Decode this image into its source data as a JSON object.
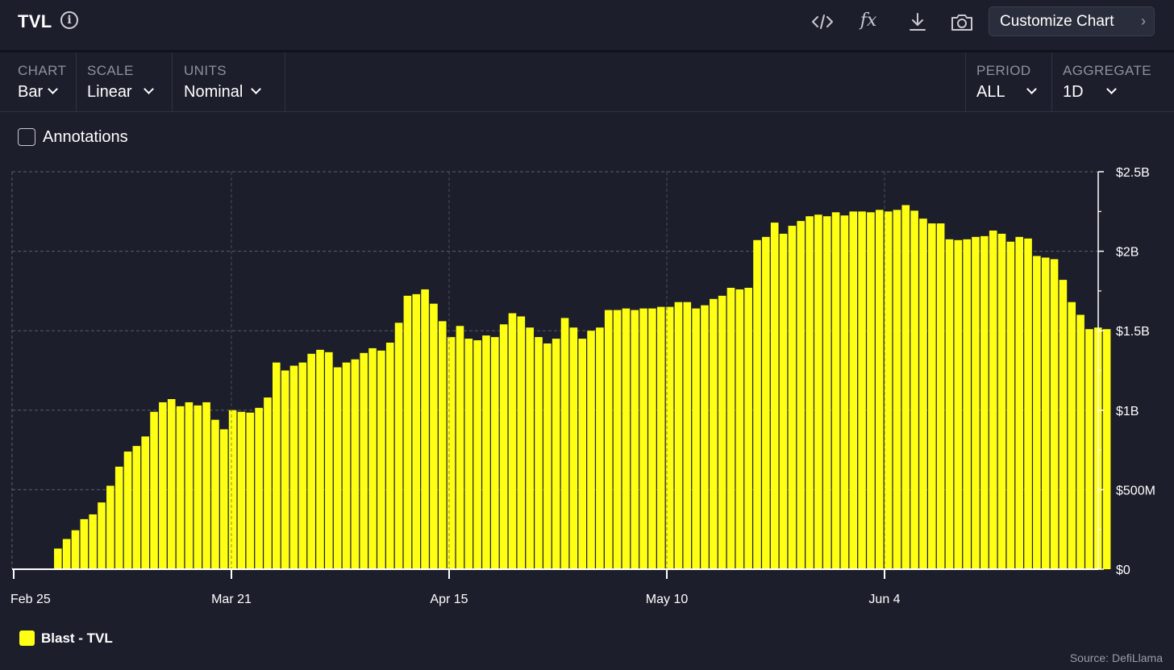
{
  "header": {
    "title": "TVL",
    "info_icon": "info-icon",
    "tools": [
      "code-embed-icon",
      "formula-icon",
      "download-icon",
      "camera-icon"
    ],
    "formula_label": "fx",
    "customize_label": "Customize Chart"
  },
  "controls": {
    "chart": {
      "label": "CHART",
      "value": "Bar"
    },
    "scale": {
      "label": "SCALE",
      "value": "Linear"
    },
    "units": {
      "label": "UNITS",
      "value": "Nominal"
    },
    "period": {
      "label": "PERIOD",
      "value": "ALL"
    },
    "aggregate": {
      "label": "AGGREGATE",
      "value": "1D"
    }
  },
  "annotations": {
    "label": "Annotations",
    "checked": false
  },
  "legend": {
    "label": "Blast - TVL",
    "color": "#ffff14"
  },
  "source": "Source: DefiLlama",
  "colors": {
    "background": "#1c1e2b",
    "bar": "#ffff14",
    "grid": "#5a5d6b"
  },
  "chart_data": {
    "type": "bar",
    "series": [
      {
        "name": "Blast - TVL"
      }
    ],
    "x_ticks": [
      "Feb 25",
      "Mar 21",
      "Apr 15",
      "May 10",
      "Jun 4"
    ],
    "y_ticks": [
      "$0",
      "$500M",
      "$1B",
      "$1.5B",
      "$2B",
      "$2.5B"
    ],
    "ylim": [
      0,
      2500
    ],
    "y_unit": "$M",
    "first_date": "Feb 29",
    "grid": true,
    "values": [
      130,
      190,
      245,
      315,
      345,
      420,
      525,
      645,
      740,
      775,
      835,
      990,
      1050,
      1070,
      1025,
      1050,
      1030,
      1050,
      940,
      880,
      1000,
      990,
      985,
      1015,
      1080,
      1300,
      1250,
      1280,
      1300,
      1355,
      1380,
      1365,
      1270,
      1300,
      1320,
      1360,
      1390,
      1375,
      1425,
      1550,
      1720,
      1730,
      1760,
      1670,
      1560,
      1460,
      1530,
      1450,
      1440,
      1470,
      1460,
      1540,
      1610,
      1590,
      1520,
      1460,
      1420,
      1450,
      1580,
      1520,
      1450,
      1500,
      1520,
      1630,
      1630,
      1640,
      1630,
      1640,
      1640,
      1650,
      1650,
      1680,
      1680,
      1640,
      1660,
      1700,
      1720,
      1770,
      1760,
      1770,
      2070,
      2090,
      2180,
      2110,
      2160,
      2190,
      2220,
      2230,
      2220,
      2245,
      2225,
      2250,
      2250,
      2245,
      2260,
      2250,
      2260,
      2290,
      2255,
      2205,
      2175,
      2175,
      2075,
      2070,
      2075,
      2090,
      2095,
      2130,
      2110,
      2060,
      2090,
      2080,
      1970,
      1960,
      1950,
      1820,
      1680,
      1600,
      1510,
      1520,
      1510
    ]
  }
}
